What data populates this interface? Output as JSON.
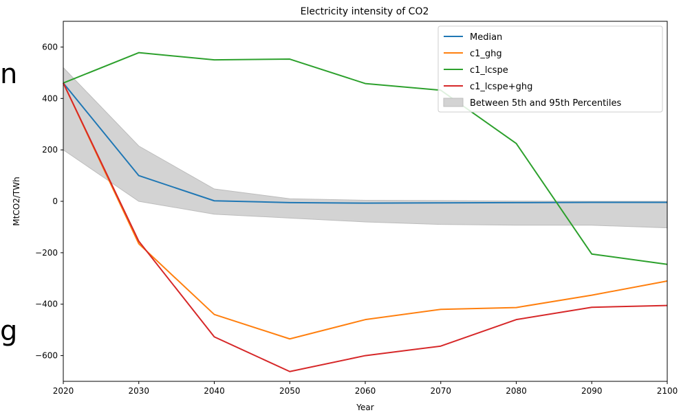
{
  "edge_text": {
    "upper": "n",
    "lower": "g"
  },
  "colors": {
    "median": "#1f77b4",
    "c1_ghg": "#ff7f0e",
    "c1_lcspe": "#2ca02c",
    "c1_lcspe_ghg": "#d62728",
    "band": "#d3d3d3"
  },
  "chart_data": {
    "type": "line",
    "title": "Electricity intensity of CO2",
    "xlabel": "Year",
    "ylabel": "MtCO2/TWh",
    "xlim": [
      2020,
      2100
    ],
    "ylim": [
      -700,
      700
    ],
    "x_ticks": [
      2020,
      2030,
      2040,
      2050,
      2060,
      2070,
      2080,
      2090,
      2100
    ],
    "y_ticks": [
      -600,
      -400,
      -200,
      0,
      200,
      400,
      600
    ],
    "y_tick_labels": [
      "−600",
      "−400",
      "−200",
      "0",
      "200",
      "400",
      "600"
    ],
    "legend_position": "top-right",
    "x": [
      2020,
      2030,
      2040,
      2050,
      2060,
      2070,
      2080,
      2090,
      2100
    ],
    "series": [
      {
        "name": "Median",
        "color": "#1f77b4",
        "values": [
          460,
          100,
          2,
          -5,
          -7,
          -6,
          -5,
          -4,
          -4
        ]
      },
      {
        "name": "c1_ghg",
        "color": "#ff7f0e",
        "values": [
          460,
          -165,
          -440,
          -535,
          -460,
          -420,
          -413,
          -365,
          -310
        ]
      },
      {
        "name": "c1_lcspe",
        "color": "#2ca02c",
        "values": [
          460,
          578,
          550,
          553,
          458,
          432,
          225,
          -205,
          -245
        ]
      },
      {
        "name": "c1_lcspe+ghg",
        "color": "#d62728",
        "values": [
          460,
          -155,
          -527,
          -662,
          -600,
          -563,
          -460,
          -412,
          -405
        ]
      }
    ],
    "band": {
      "name": "Between 5th and 95th Percentiles",
      "color": "#d3d3d3",
      "upper": [
        520,
        215,
        48,
        10,
        4,
        3,
        1,
        0,
        0
      ],
      "lower": [
        200,
        0,
        -50,
        -65,
        -80,
        -90,
        -93,
        -93,
        -103
      ]
    }
  }
}
